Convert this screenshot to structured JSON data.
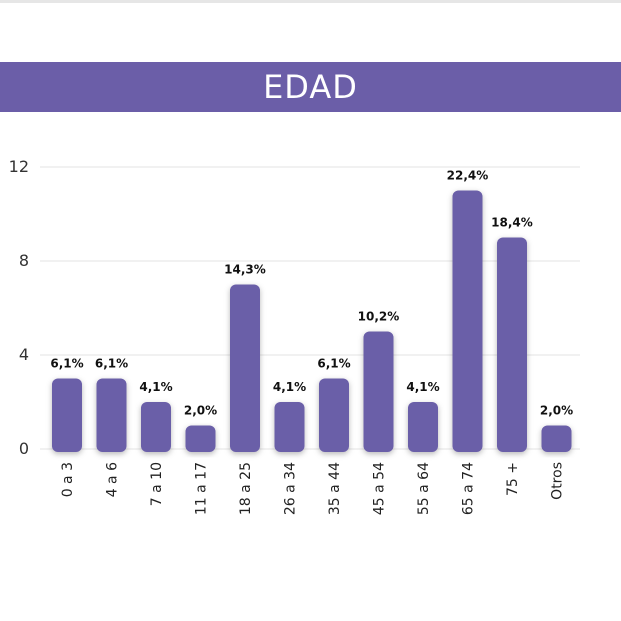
{
  "title": "EDAD",
  "colors": {
    "bar": "#6b5ea8",
    "title_bar": "#6b5ea8",
    "grid": "#e3e3e3"
  },
  "chart_data": {
    "type": "bar",
    "title": "EDAD",
    "categories": [
      "0 a 3",
      "4 a 6",
      "7 a 10",
      "11 a 17",
      "18 a 25",
      "26 a 34",
      "35 a 44",
      "45 a 54",
      "55 a 64",
      "65 a 74",
      "75 +",
      "Otros"
    ],
    "values": [
      3,
      3,
      2,
      1,
      7,
      2,
      3,
      5,
      2,
      11,
      9,
      1
    ],
    "data_labels": [
      "6,1%",
      "6,1%",
      "4,1%",
      "2,0%",
      "14,3%",
      "4,1%",
      "6,1%",
      "10,2%",
      "4,1%",
      "22,4%",
      "18,4%",
      "2,0%"
    ],
    "yticks": [
      "0",
      "4",
      "8",
      "12"
    ],
    "ylim": [
      0,
      12
    ],
    "grid": true,
    "xlabel": "",
    "ylabel": ""
  }
}
